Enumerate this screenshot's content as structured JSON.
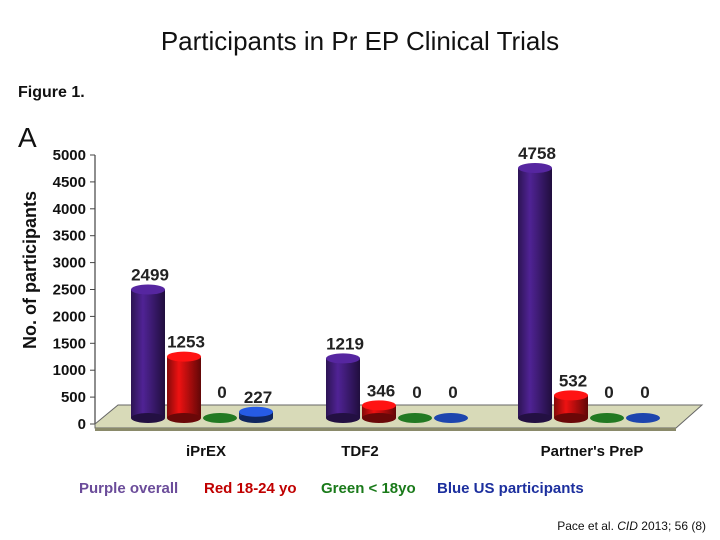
{
  "title": "Participants in Pr EP Clinical Trials",
  "figure_label": "Figure 1.",
  "panel_letter": "A",
  "legend": [
    {
      "label": "Purple overall",
      "color": "#6b4c9a"
    },
    {
      "label": "Red 18-24 yo",
      "color": "#c00000"
    },
    {
      "label": "Green < 18yo",
      "color": "#1a7a1a"
    },
    {
      "label": "Blue US participants",
      "color": "#1c2f9e"
    }
  ],
  "citation": {
    "prefix": "Pace et al.",
    "journal": "CID",
    "suffix": "2013; 56 (8)"
  },
  "chart_data": {
    "type": "bar",
    "title": "",
    "ylabel": "No. of participants",
    "xlabel": "",
    "ylim": [
      0,
      5000
    ],
    "yticks": [
      0,
      500,
      1000,
      1500,
      2000,
      2500,
      3000,
      3500,
      4000,
      4500,
      5000
    ],
    "categories": [
      "iPrEX",
      "TDF2",
      "Partner's PreP"
    ],
    "series": [
      {
        "values": [
          2499,
          1219,
          4758
        ],
        "color": "#3b1a6e"
      },
      {
        "values": [
          1253,
          346,
          532
        ],
        "color": "#b00d0d"
      },
      {
        "values": [
          0,
          0,
          0
        ],
        "color": "#1f6e1f"
      },
      {
        "values": [
          227,
          0,
          0
        ],
        "color": "#1a3f9e"
      }
    ],
    "data_labels": [
      [
        "2499",
        "1253",
        "0",
        "227"
      ],
      [
        "1219",
        "346",
        "0",
        "0"
      ],
      [
        "4758",
        "532",
        "0",
        "0"
      ]
    ]
  }
}
